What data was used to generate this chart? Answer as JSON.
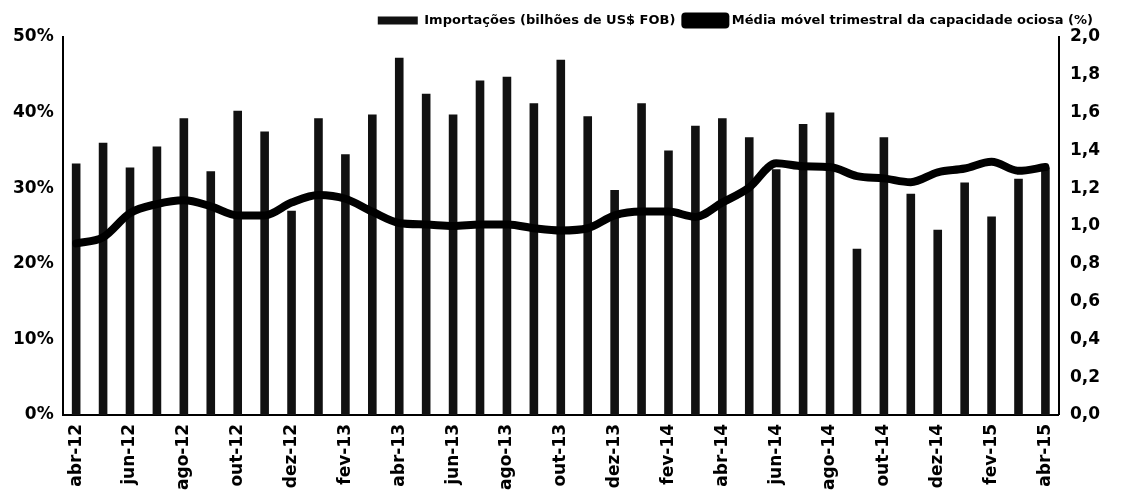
{
  "chart_data": {
    "type": "bar",
    "categories": [
      "abr-12",
      null,
      "jun-12",
      null,
      "ago-12",
      null,
      "out-12",
      null,
      "dez-12",
      null,
      "fev-13",
      null,
      "abr-13",
      null,
      "jun-13",
      null,
      "ago-13",
      null,
      "out-13",
      null,
      "dez-13",
      null,
      "fev-14",
      null,
      "abr-14",
      null,
      "jun-14",
      null,
      "ago-14",
      null,
      "out-14",
      null,
      "dez-14",
      null,
      "fev-15",
      null,
      "abr-15"
    ],
    "series": [
      {
        "name": "Importações (bilhões de US$ FOB)",
        "axis": "y2",
        "color": "#111111",
        "values": [
          1.33,
          1.44,
          1.31,
          1.42,
          1.57,
          1.29,
          1.61,
          1.5,
          1.08,
          1.57,
          1.38,
          1.59,
          1.89,
          1.7,
          1.59,
          1.77,
          1.79,
          1.65,
          1.88,
          1.58,
          1.19,
          1.65,
          1.4,
          1.53,
          1.57,
          1.47,
          1.3,
          1.54,
          1.6,
          0.88,
          1.47,
          1.17,
          0.98,
          1.23,
          1.05,
          1.25,
          1.31
        ]
      },
      {
        "name": "Média móvel trimestral da capacidade ociosa (%)",
        "type": "line",
        "color": "#000000",
        "values": [
          22.7,
          23.5,
          26.7,
          27.9,
          28.4,
          27.6,
          26.4,
          26.4,
          28.1,
          29.1,
          28.6,
          26.9,
          25.4,
          25.2,
          25.0,
          25.2,
          25.2,
          24.7,
          24.4,
          24.7,
          26.4,
          26.9,
          26.9,
          26.2,
          28.1,
          30.1,
          33.3,
          32.9,
          32.8,
          31.6,
          31.3,
          30.8,
          32.1,
          32.6,
          33.5,
          32.3,
          32.8
        ]
      }
    ],
    "ylim": [
      0,
      50
    ],
    "yticks": [
      {
        "value": 0,
        "label": "0%"
      },
      {
        "value": 10,
        "label": "10%"
      },
      {
        "value": 20,
        "label": "20%"
      },
      {
        "value": 30,
        "label": "30%"
      },
      {
        "value": 40,
        "label": "40%"
      },
      {
        "value": 50,
        "label": "50%"
      }
    ],
    "y2lim": [
      0,
      2
    ],
    "y2ticks": [
      {
        "value": 0,
        "label": "0,0"
      },
      {
        "value": 0.2,
        "label": "0,2"
      },
      {
        "value": 0.4,
        "label": "0,4"
      },
      {
        "value": 0.6,
        "label": "0,6"
      },
      {
        "value": 0.8,
        "label": "0,8"
      },
      {
        "value": 1,
        "label": "1,0"
      },
      {
        "value": 1.2,
        "label": "1,2"
      },
      {
        "value": 1.4,
        "label": "1,4"
      },
      {
        "value": 1.6,
        "label": "1,6"
      },
      {
        "value": 1.8,
        "label": "1,8"
      },
      {
        "value": 2,
        "label": "2,0"
      }
    ],
    "legend": "top right",
    "grid": false,
    "marker": "none",
    "line_style": "solid"
  }
}
